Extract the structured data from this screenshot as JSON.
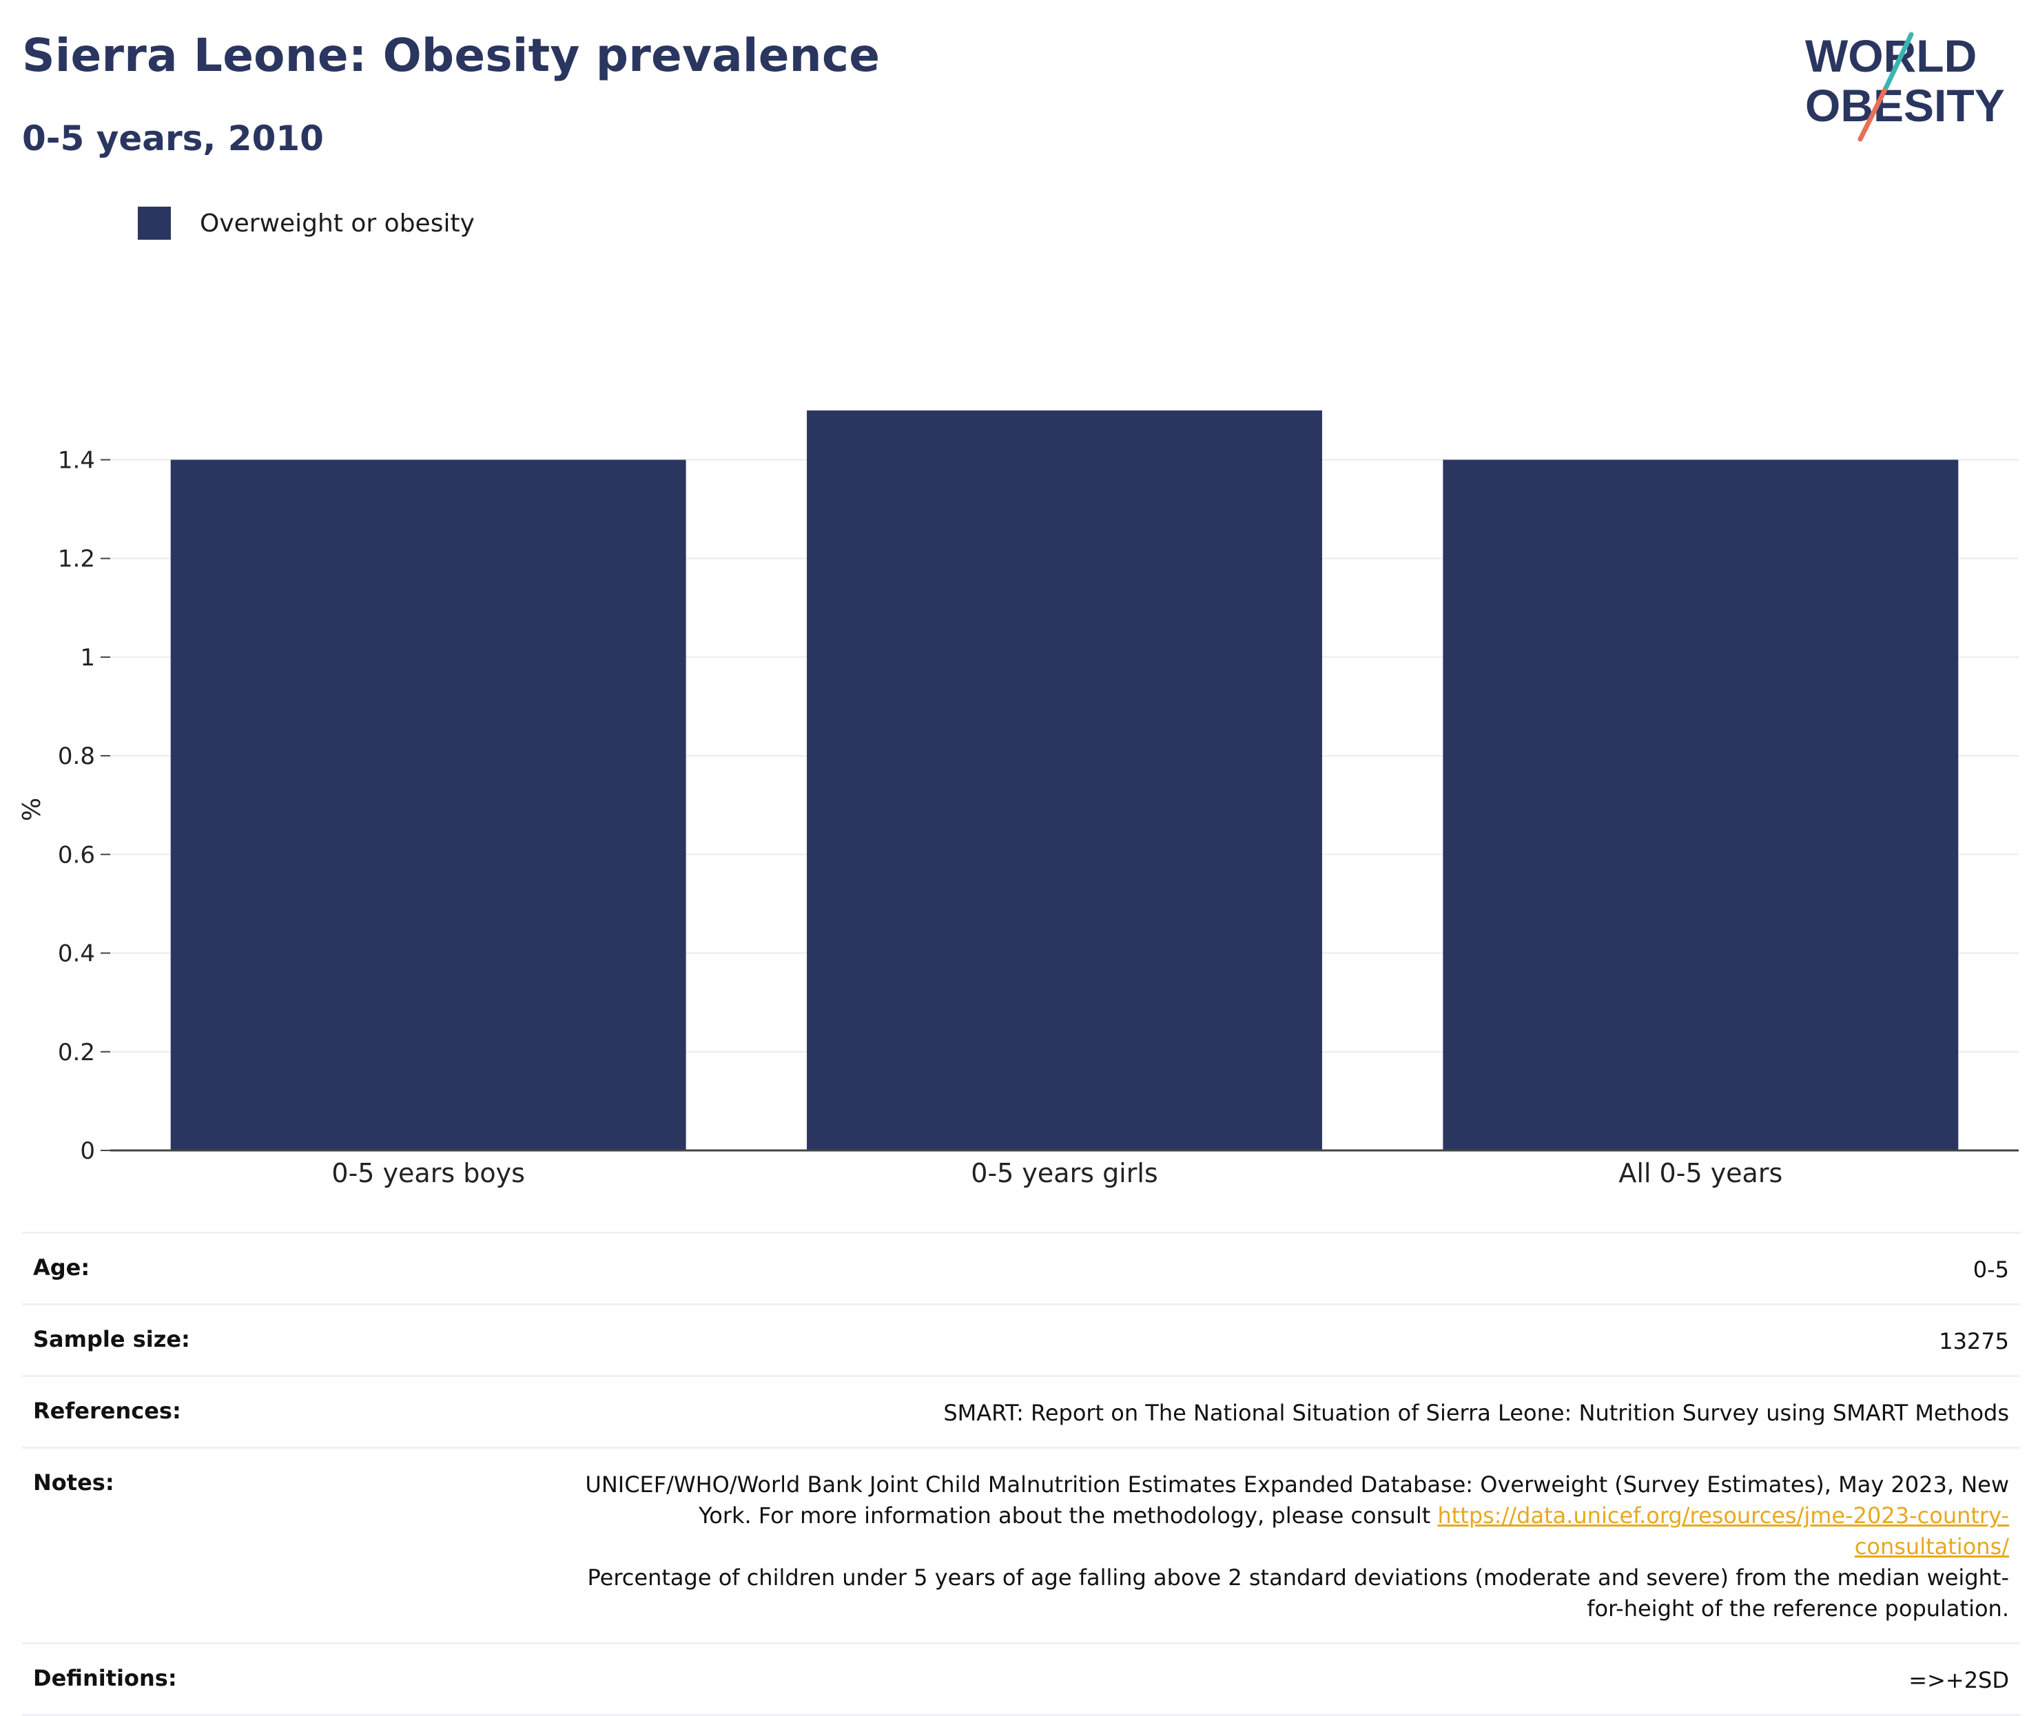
{
  "header": {
    "title": "Sierra Leone: Obesity prevalence",
    "subtitle": "0-5 years, 2010"
  },
  "logo": {
    "line1": "WORLD",
    "line2": "OBESITY"
  },
  "colors": {
    "bar": "#2a365f",
    "title": "#2a365f",
    "link": "#e8a81d",
    "logo_teal": "#3bb5b0",
    "logo_red": "#e8705a"
  },
  "chart_data": {
    "type": "bar",
    "categories": [
      "0-5 years boys",
      "0-5 years girls",
      "All 0-5 years"
    ],
    "series": [
      {
        "name": "Overweight or obesity",
        "values": [
          1.4,
          1.5,
          1.4
        ]
      }
    ],
    "ylabel": "%",
    "ylim": [
      0,
      1.55
    ],
    "yticks": [
      0,
      0.2,
      0.4,
      0.6,
      0.8,
      1,
      1.2,
      1.4
    ],
    "ytick_labels": [
      "0",
      "0.2",
      "0.4",
      "0.6",
      "0.8",
      "1",
      "1.2",
      "1.4"
    ],
    "grid": true,
    "legend_position": "top-left"
  },
  "info": {
    "age": {
      "label": "Age:",
      "value": "0-5"
    },
    "sample_size": {
      "label": "Sample size:",
      "value": "13275"
    },
    "references": {
      "label": "References:",
      "value": "SMART: Report on The National Situation of Sierra Leone: Nutrition Survey using SMART Methods"
    },
    "notes": {
      "label": "Notes:",
      "text1": "UNICEF/WHO/World Bank Joint Child Malnutrition Estimates Expanded Database: Overweight (Survey Estimates), May 2023, New York. For more information about the methodology, please consult",
      "link": "https://data.unicef.org/resources/jme-2023-country-consultations/",
      "text2": "Percentage of children under 5 years of age falling above 2 standard deviations (moderate and severe) from the median weight-for-height of the reference population."
    },
    "definitions": {
      "label": "Definitions:",
      "value": "=>+2SD"
    }
  }
}
